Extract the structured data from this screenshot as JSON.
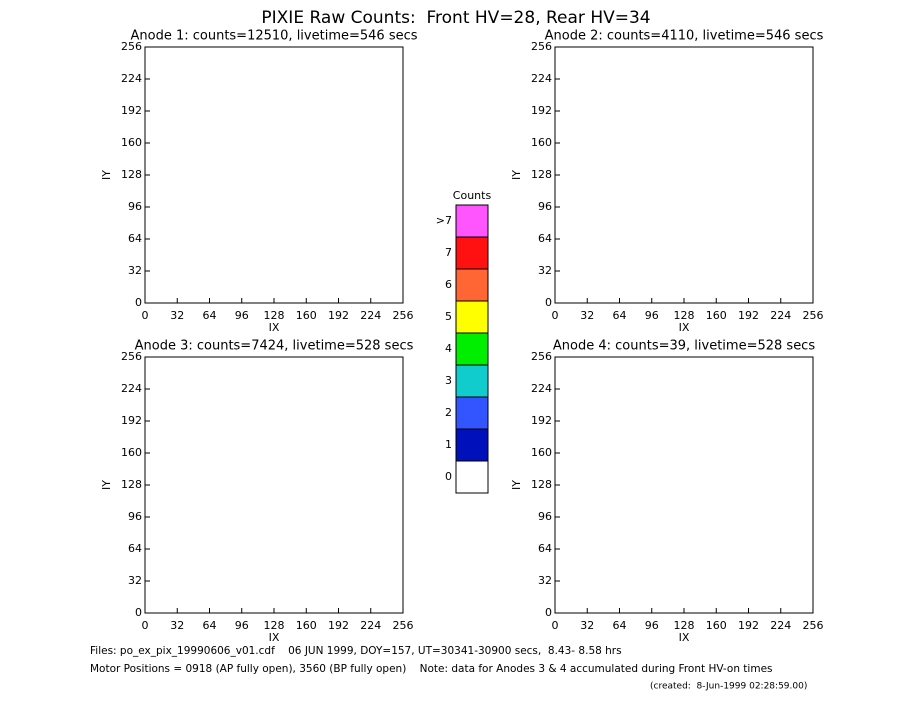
{
  "title": "PIXIE Raw Counts:  Front HV=28, Rear HV=34",
  "chart_data": [
    {
      "type": "heatmap",
      "title": "Anode 1: counts=12510, livetime=546 secs",
      "xlabel": "IX",
      "ylabel": "IY",
      "xlim": [
        0,
        256
      ],
      "ylim": [
        0,
        256
      ],
      "xticks": [
        0,
        32,
        64,
        96,
        128,
        160,
        192,
        224,
        256
      ],
      "yticks": [
        0,
        32,
        64,
        96,
        128,
        160,
        192,
        224,
        256
      ]
    },
    {
      "type": "heatmap",
      "title": "Anode 2: counts=4110, livetime=546 secs",
      "xlabel": "IX",
      "ylabel": "IY",
      "xlim": [
        0,
        256
      ],
      "ylim": [
        0,
        256
      ],
      "xticks": [
        0,
        32,
        64,
        96,
        128,
        160,
        192,
        224,
        256
      ],
      "yticks": [
        0,
        32,
        64,
        96,
        128,
        160,
        192,
        224,
        256
      ]
    },
    {
      "type": "heatmap",
      "title": "Anode 3: counts=7424, livetime=528 secs",
      "xlabel": "IX",
      "ylabel": "IY",
      "xlim": [
        0,
        256
      ],
      "ylim": [
        0,
        256
      ],
      "xticks": [
        0,
        32,
        64,
        96,
        128,
        160,
        192,
        224,
        256
      ],
      "yticks": [
        0,
        32,
        64,
        96,
        128,
        160,
        192,
        224,
        256
      ]
    },
    {
      "type": "heatmap",
      "title": "Anode 4: counts=39, livetime=528 secs",
      "xlabel": "IX",
      "ylabel": "IY",
      "xlim": [
        0,
        256
      ],
      "ylim": [
        0,
        256
      ],
      "xticks": [
        0,
        32,
        64,
        96,
        128,
        160,
        192,
        224,
        256
      ],
      "yticks": [
        0,
        32,
        64,
        96,
        128,
        160,
        192,
        224,
        256
      ]
    }
  ],
  "colorbar": {
    "title": "Counts",
    "levels": [
      {
        "label": ">7",
        "color": "#ff55ff"
      },
      {
        "label": "7",
        "color": "#ff1111"
      },
      {
        "label": "6",
        "color": "#ff6633"
      },
      {
        "label": "5",
        "color": "#ffff00"
      },
      {
        "label": "4",
        "color": "#00ee00"
      },
      {
        "label": "3",
        "color": "#11cccc"
      },
      {
        "label": "2",
        "color": "#3355ff"
      },
      {
        "label": "1",
        "color": "#0011bb"
      },
      {
        "label": "0",
        "color": "#ffffff"
      }
    ]
  },
  "footer": [
    "Files: po_ex_pix_19990606_v01.cdf    06 JUN 1999, DOY=157, UT=30341-30900 secs,  8.43- 8.58 hrs",
    "Motor Positions = 0918 (AP fully open), 3560 (BP fully open)    Note: data for Anodes 3 & 4 accumulated during Front HV-on times",
    "(created:  8-Jun-1999 02:28:59.00)"
  ]
}
